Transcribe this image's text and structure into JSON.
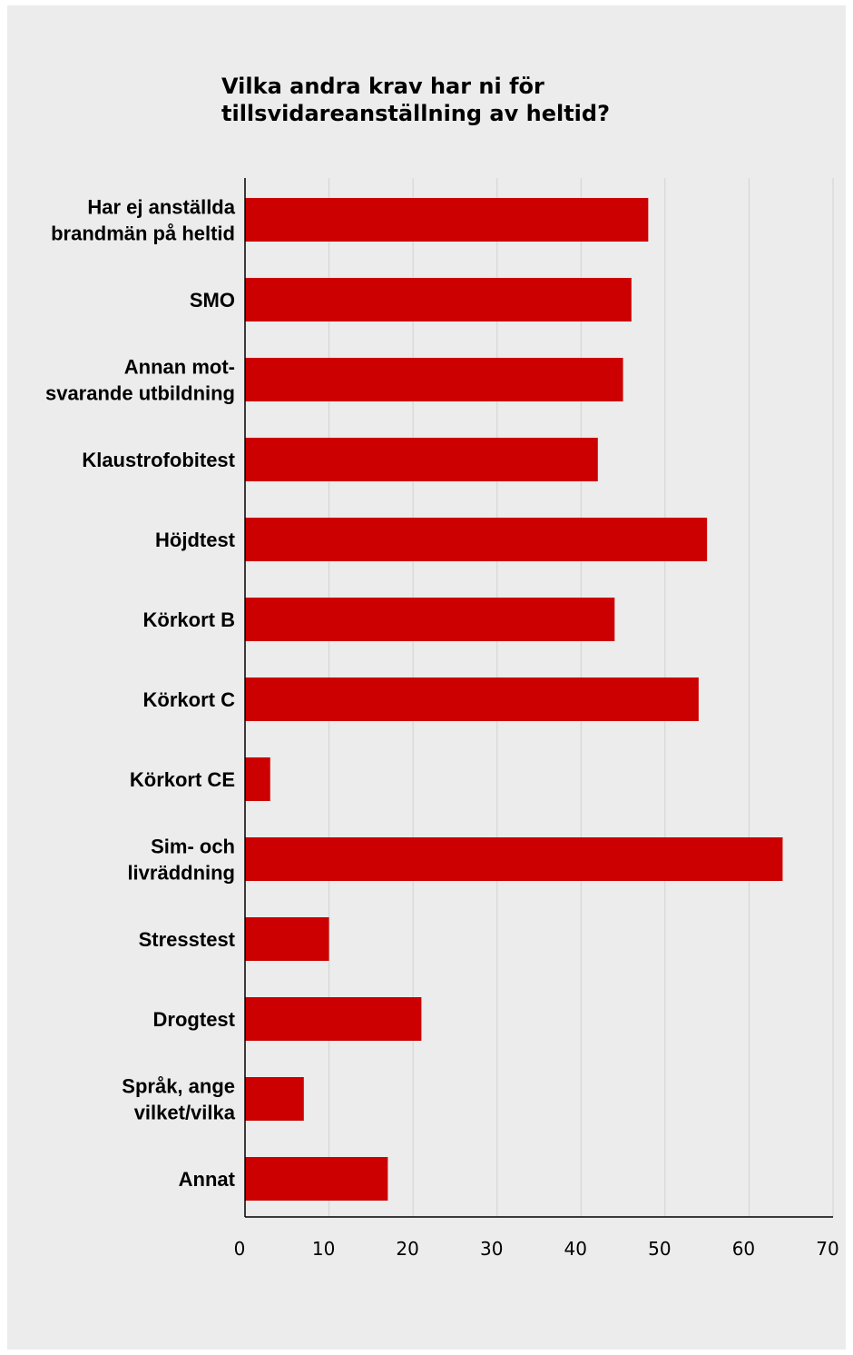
{
  "chart_data": {
    "type": "bar",
    "orientation": "horizontal",
    "title_lines": [
      "Vilka andra krav har ni för",
      "tillsvidareanställning av heltid?"
    ],
    "categories": [
      [
        "Har ej anställda",
        "brandmän på heltid"
      ],
      [
        "SMO"
      ],
      [
        "Annan mot-",
        "svarande utbildning"
      ],
      [
        "Klaustrofobitest"
      ],
      [
        "Höjdtest"
      ],
      [
        "Körkort B"
      ],
      [
        "Körkort C"
      ],
      [
        "Körkort CE"
      ],
      [
        "Sim- och",
        "livräddning"
      ],
      [
        "Stresstest"
      ],
      [
        "Drogtest"
      ],
      [
        "Språk, ange",
        "vilket/vilka"
      ],
      [
        "Annat"
      ]
    ],
    "values": [
      48,
      46,
      45,
      42,
      55,
      44,
      54,
      3,
      64,
      10,
      21,
      7,
      17
    ],
    "xlim": [
      0,
      70
    ],
    "xticks": [
      "0",
      "10",
      "20",
      "30",
      "40",
      "50",
      "60",
      "70"
    ],
    "grid": "vertical",
    "bar_color": "#cc0000",
    "background_color": "#ececec"
  }
}
